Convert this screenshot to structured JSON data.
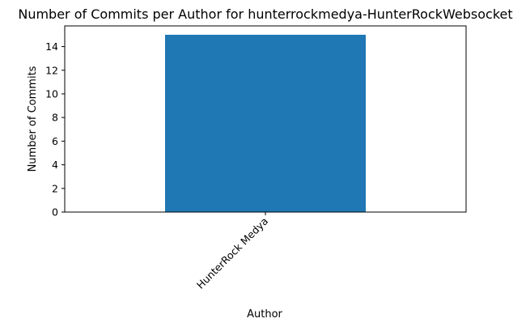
{
  "chart_data": {
    "type": "bar",
    "title": "Number of Commits per Author for hunterrockmedya-HunterRockWebsocket",
    "xlabel": "Author",
    "ylabel": "Number of Commits",
    "categories": [
      "HunterRock Medya"
    ],
    "values": [
      15
    ],
    "ylim": [
      0,
      15.75
    ],
    "yticks": [
      0,
      2,
      4,
      6,
      8,
      10,
      12,
      14
    ],
    "xtick_rotation": "45 degrees, right-aligned",
    "grid": false,
    "legend": "none",
    "bar_color": "#1f77b4"
  }
}
